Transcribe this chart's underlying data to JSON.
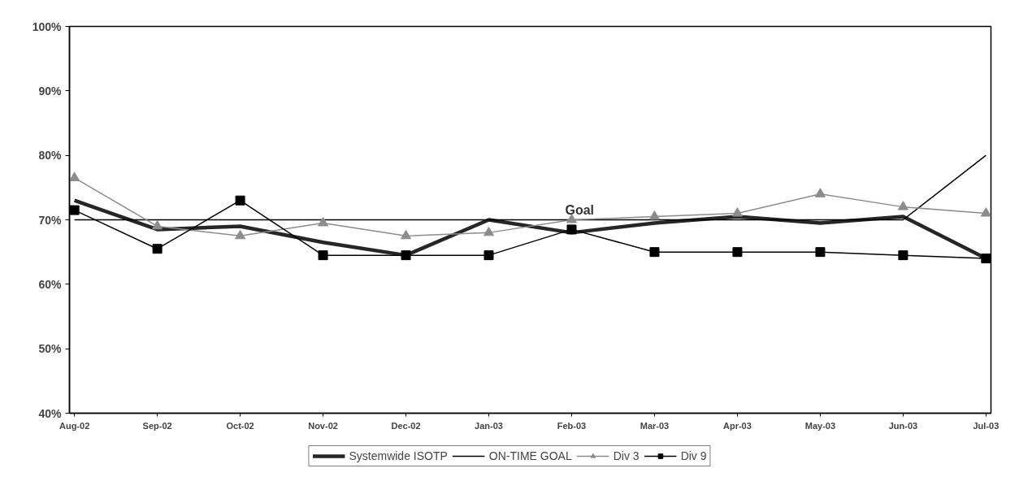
{
  "chart_data": {
    "type": "line",
    "categories": [
      "Aug-02",
      "Sep-02",
      "Oct-02",
      "Nov-02",
      "Dec-02",
      "Jan-03",
      "Feb-03",
      "Mar-03",
      "Apr-03",
      "May-03",
      "Jun-03",
      "Jul-03"
    ],
    "ylim": [
      40,
      100
    ],
    "yticks": [
      {
        "value": 40,
        "label": "40%"
      },
      {
        "value": 50,
        "label": "50%"
      },
      {
        "value": 60,
        "label": "60%"
      },
      {
        "value": 70,
        "label": "70%"
      },
      {
        "value": 80,
        "label": "80%"
      },
      {
        "value": 90,
        "label": "90%"
      },
      {
        "value": 100,
        "label": "100%"
      }
    ],
    "grid": false,
    "legend": "bottom",
    "line_style": "solid",
    "annotations": [
      {
        "text": "Goal",
        "x": "Feb-03",
        "y": 70
      }
    ],
    "series": [
      {
        "name": "Systemwide ISOTP",
        "color": "#262626",
        "marker": "none",
        "values": [
          73,
          68.5,
          69,
          66.5,
          64.5,
          70,
          68,
          69.5,
          70.5,
          69.5,
          70.5,
          64
        ]
      },
      {
        "name": "ON-TIME GOAL",
        "color": "#000000",
        "marker": "none",
        "values": [
          70,
          70,
          70,
          70,
          70,
          70,
          70,
          70,
          70,
          70,
          70,
          80
        ]
      },
      {
        "name": "Div 3",
        "color": "#8c8c8c",
        "marker": "triangle",
        "values": [
          76.5,
          69,
          67.5,
          69.5,
          67.5,
          68,
          70,
          70.5,
          71,
          74,
          72,
          71
        ]
      },
      {
        "name": "Div 9",
        "color": "#000000",
        "marker": "square",
        "values": [
          71.5,
          65.5,
          73,
          64.5,
          64.5,
          64.5,
          68.5,
          65,
          65,
          65,
          64.5,
          64
        ]
      }
    ]
  }
}
